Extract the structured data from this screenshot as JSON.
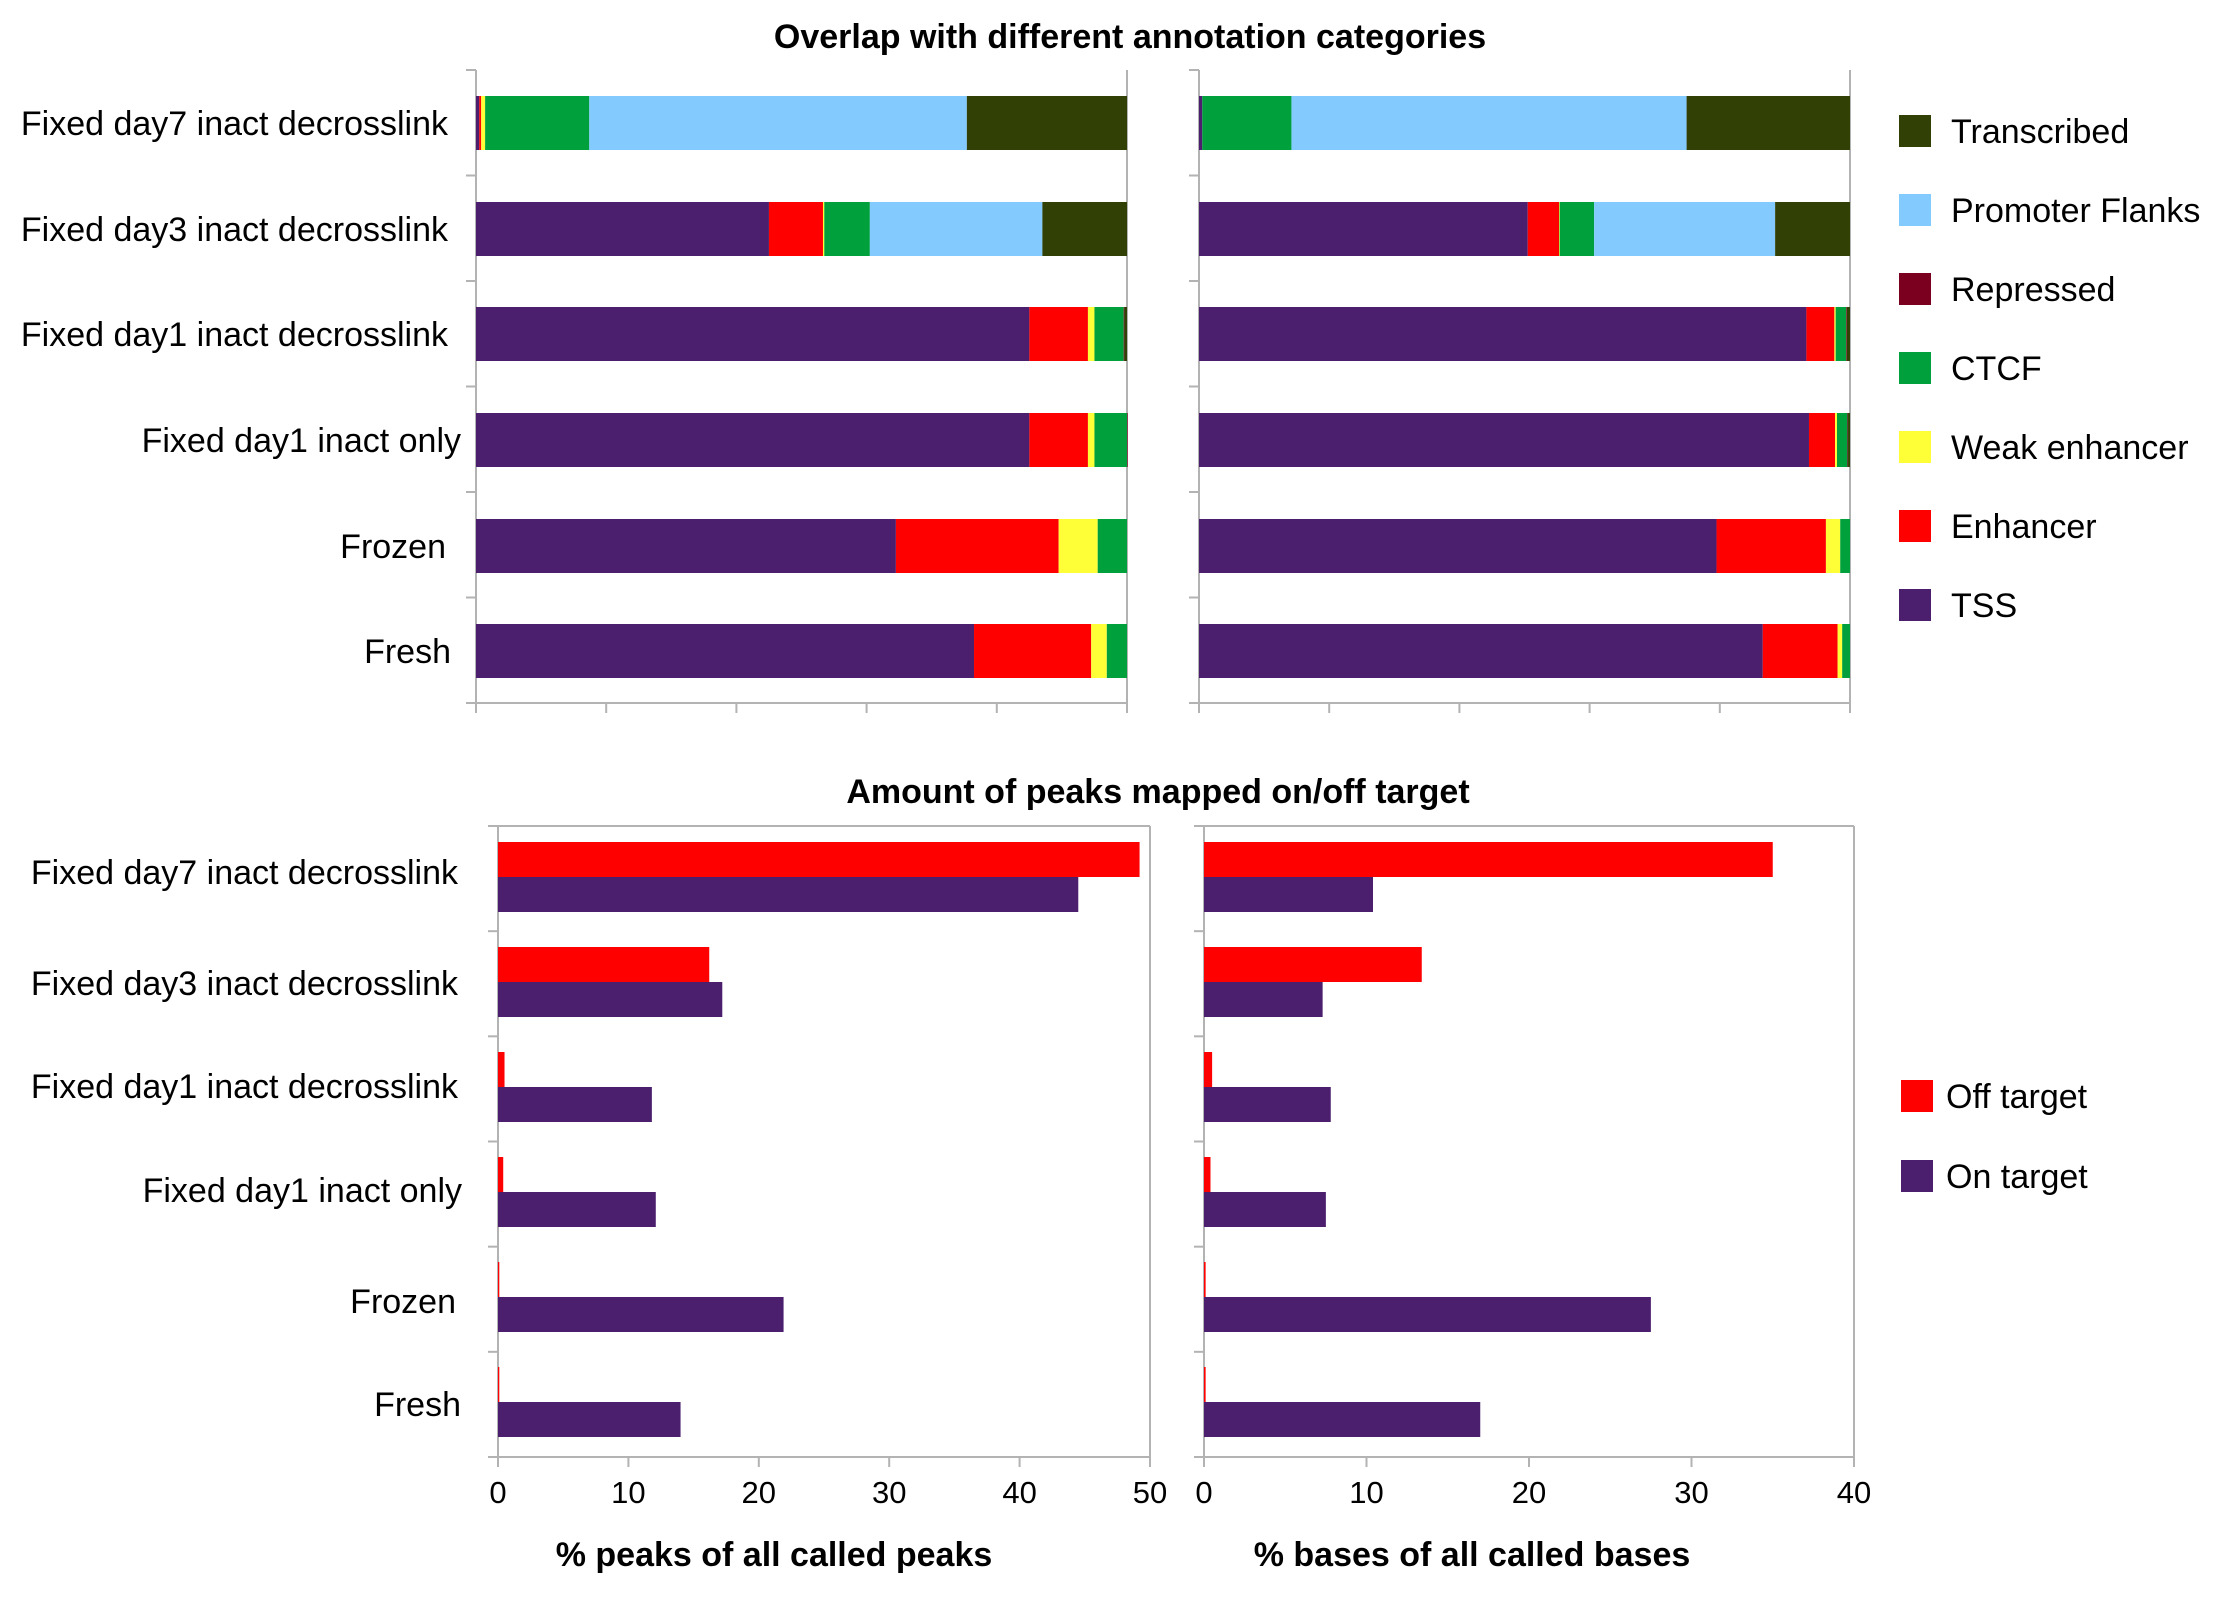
{
  "chart_data": [
    {
      "type": "bar",
      "orientation": "horizontal",
      "stacked": true,
      "normalized": true,
      "title": "Overlap with different annotation categories",
      "panel": "left",
      "categories": [
        "Fixed day7 inact decrosslink",
        "Fixed day3 inact decrosslink",
        "Fixed day1 inact decrosslink",
        "Fixed day1 inact only",
        "Frozen",
        "Fresh"
      ],
      "series": [
        {
          "name": "TSS",
          "color": "#4b1f6e",
          "values": [
            0.5,
            45.0,
            85.0,
            85.0,
            64.5,
            76.5
          ]
        },
        {
          "name": "Enhancer",
          "color": "#ff0000",
          "values": [
            0.3,
            8.3,
            9.0,
            9.0,
            25.0,
            18.0
          ]
        },
        {
          "name": "Weak enhancer",
          "color": "#ffff38",
          "values": [
            0.6,
            0.2,
            1.0,
            1.0,
            6.0,
            2.4
          ]
        },
        {
          "name": "CTCF",
          "color": "#00a03c",
          "values": [
            16.0,
            7.0,
            4.5,
            5.0,
            4.5,
            3.1
          ]
        },
        {
          "name": "Repressed",
          "color": "#7b0020",
          "values": [
            0.0,
            0.0,
            0.1,
            0.1,
            0.0,
            0.0
          ]
        },
        {
          "name": "Promoter Flanks",
          "color": "#83caff",
          "values": [
            58.0,
            26.5,
            0.0,
            0.0,
            0.0,
            0.0
          ]
        },
        {
          "name": "Transcribed",
          "color": "#314004",
          "values": [
            24.6,
            13.0,
            0.4,
            0.0,
            0.0,
            0.0
          ]
        }
      ],
      "xlim": [
        0,
        100
      ]
    },
    {
      "type": "bar",
      "orientation": "horizontal",
      "stacked": true,
      "normalized": true,
      "panel": "right",
      "categories": [
        "Fixed day7 inact decrosslink",
        "Fixed day3 inact decrosslink",
        "Fixed day1 inact decrosslink",
        "Fixed day1 inact only",
        "Frozen",
        "Fresh"
      ],
      "series": [
        {
          "name": "TSS",
          "color": "#4b1f6e",
          "values": [
            0.5,
            50.5,
            93.3,
            93.7,
            79.5,
            86.6
          ]
        },
        {
          "name": "Enhancer",
          "color": "#ff0000",
          "values": [
            0.0,
            4.8,
            4.3,
            4.0,
            16.8,
            11.5
          ]
        },
        {
          "name": "Weak enhancer",
          "color": "#ffff38",
          "values": [
            0.0,
            0.1,
            0.2,
            0.3,
            2.2,
            0.7
          ]
        },
        {
          "name": "CTCF",
          "color": "#00a03c",
          "values": [
            13.7,
            5.3,
            1.6,
            1.6,
            1.5,
            1.2
          ]
        },
        {
          "name": "Repressed",
          "color": "#7b0020",
          "values": [
            0.0,
            0.0,
            0.1,
            0.1,
            0.0,
            0.0
          ]
        },
        {
          "name": "Promoter Flanks",
          "color": "#83caff",
          "values": [
            60.7,
            27.8,
            0.0,
            0.0,
            0.0,
            0.0
          ]
        },
        {
          "name": "Transcribed",
          "color": "#314004",
          "values": [
            25.1,
            11.5,
            0.5,
            0.3,
            0.0,
            0.0
          ]
        }
      ],
      "xlim": [
        0,
        100
      ]
    },
    {
      "type": "bar",
      "orientation": "horizontal",
      "title": "Amount of peaks mapped on/off target",
      "panel": "left",
      "xlabel": "% peaks of all called peaks",
      "categories": [
        "Fixed day7 inact decrosslink",
        "Fixed day3 inact decrosslink",
        "Fixed day1 inact decrosslink",
        "Fixed day1 inact only",
        "Frozen",
        "Fresh"
      ],
      "series": [
        {
          "name": "Off target",
          "color": "#ff0000",
          "values": [
            49.2,
            16.2,
            0.5,
            0.4,
            0.1,
            0.1
          ]
        },
        {
          "name": "On target",
          "color": "#4b1f6e",
          "values": [
            44.5,
            17.2,
            11.8,
            12.1,
            21.9,
            14.0
          ]
        }
      ],
      "xlim": [
        0,
        50
      ],
      "xticks": [
        "0",
        "10",
        "20",
        "30",
        "40",
        "50"
      ]
    },
    {
      "type": "bar",
      "orientation": "horizontal",
      "panel": "right",
      "xlabel": "% bases of all called bases",
      "categories": [
        "Fixed day7 inact decrosslink",
        "Fixed day3 inact decrosslink",
        "Fixed day1 inact decrosslink",
        "Fixed day1 inact only",
        "Frozen",
        "Fresh"
      ],
      "series": [
        {
          "name": "Off target",
          "color": "#ff0000",
          "values": [
            35.0,
            13.4,
            0.5,
            0.4,
            0.1,
            0.1
          ]
        },
        {
          "name": "On target",
          "color": "#4b1f6e",
          "values": [
            10.4,
            7.3,
            7.8,
            7.5,
            27.5,
            17.0
          ]
        }
      ],
      "xlim": [
        0,
        40
      ],
      "xticks": [
        "0",
        "10",
        "20",
        "30",
        "40"
      ]
    }
  ],
  "legend_top": [
    "Transcribed",
    "Promoter Flanks",
    "Repressed",
    "CTCF",
    "Weak enhancer",
    "Enhancer",
    "TSS"
  ],
  "legend_bottom": [
    "Off target",
    "On target"
  ],
  "grid": false,
  "legend_position": "right"
}
